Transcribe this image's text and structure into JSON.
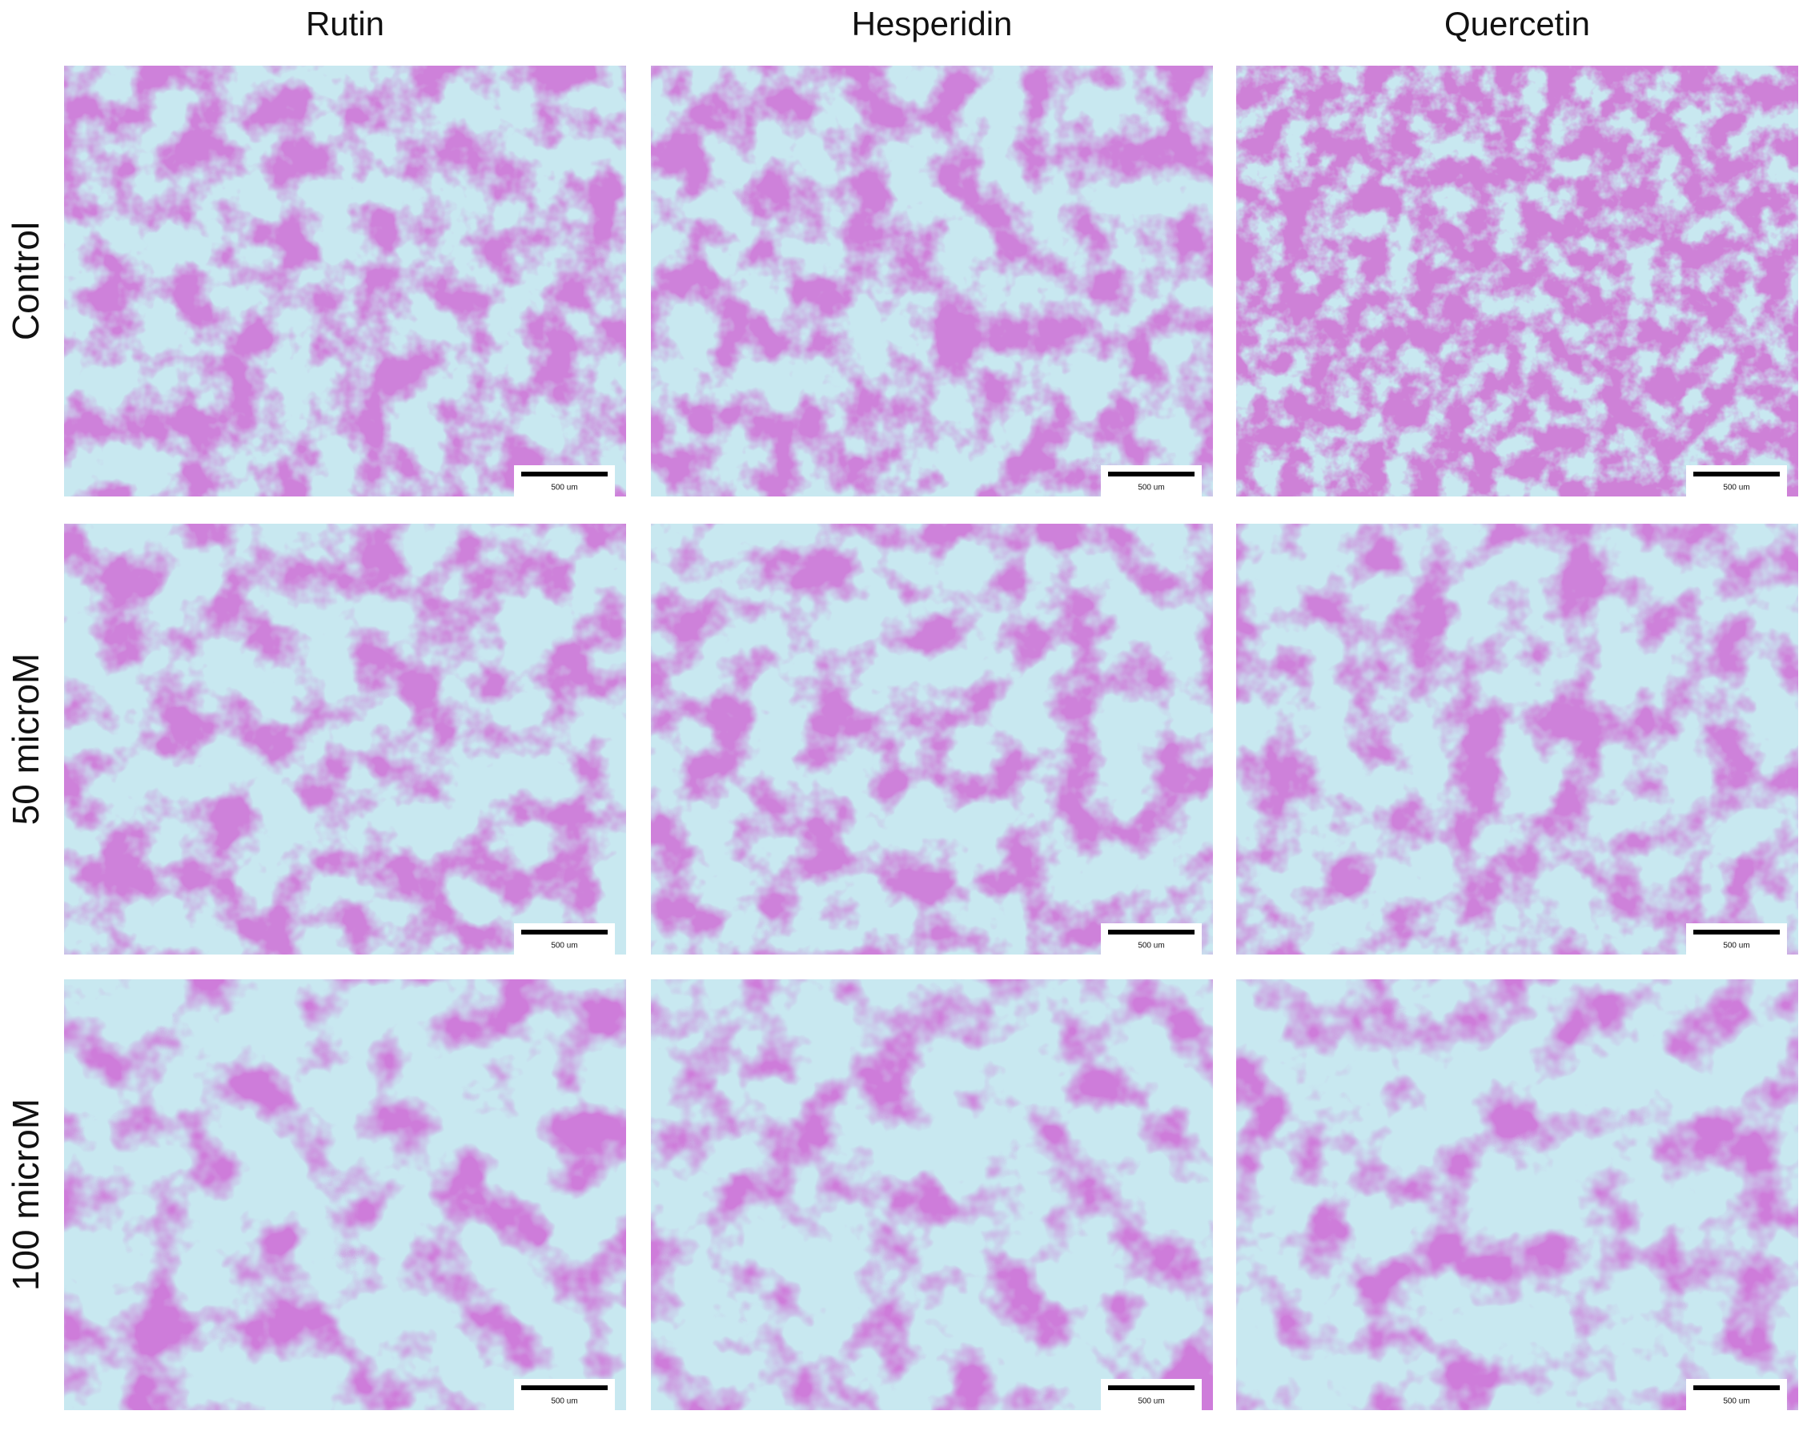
{
  "columns": [
    "Rutin",
    "Hesperidin",
    "Quercetin"
  ],
  "rows": [
    "Control",
    "50 microM",
    "100 microM"
  ],
  "panels": [
    [
      {
        "scale_bar": "500 um"
      },
      {
        "scale_bar": "500 um"
      },
      {
        "scale_bar": "500 um"
      }
    ],
    [
      {
        "scale_bar": "500 um"
      },
      {
        "scale_bar": "500 um"
      },
      {
        "scale_bar": "500 um"
      }
    ],
    [
      {
        "scale_bar": "500 um"
      },
      {
        "scale_bar": "500 um"
      },
      {
        "scale_bar": "500 um"
      }
    ]
  ]
}
